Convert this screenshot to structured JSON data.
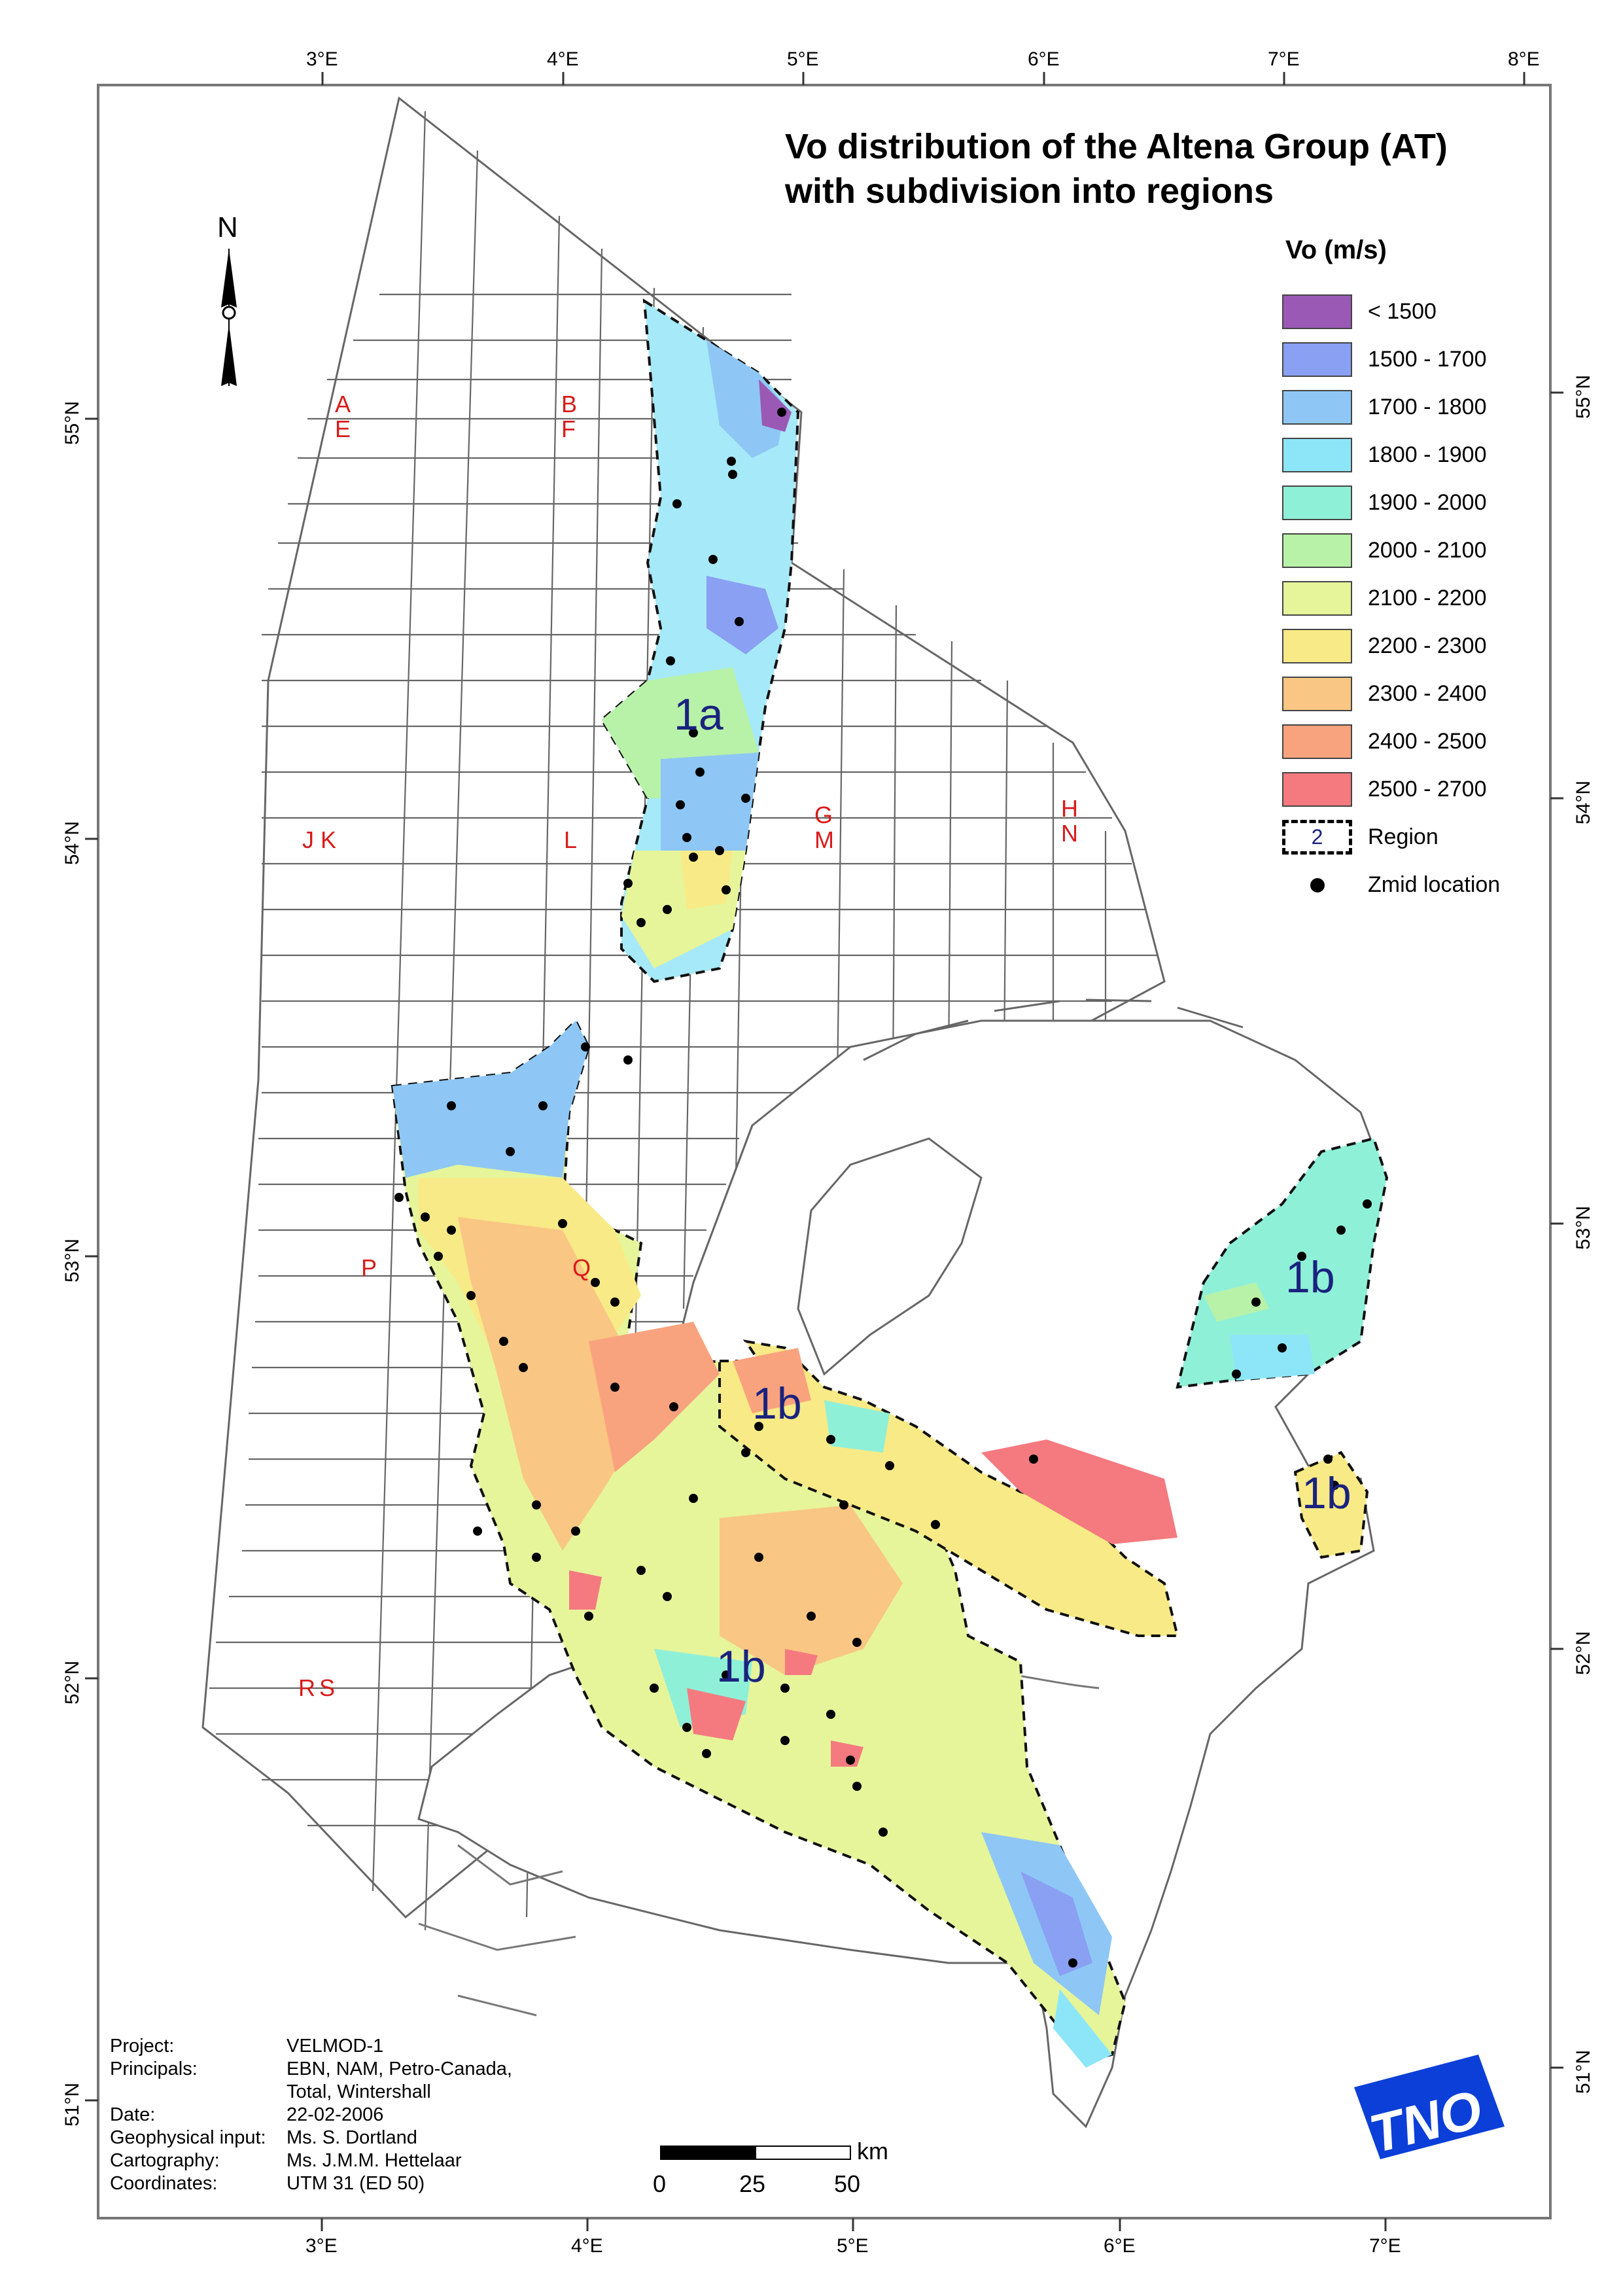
{
  "title_lines": [
    "Vo distribution of the Altena Group (AT)",
    "with subdivision into regions"
  ],
  "legend": {
    "title": "Vo (m/s)",
    "classes": [
      {
        "label": "< 1500",
        "color": "#9b59b6"
      },
      {
        "label": "1500 - 1700",
        "color": "#8aa0f2"
      },
      {
        "label": "1700 - 1800",
        "color": "#8ec7f5"
      },
      {
        "label": "1800 - 1900",
        "color": "#8de6f7"
      },
      {
        "label": "1900 - 2000",
        "color": "#8ff0d8"
      },
      {
        "label": "2000 - 2100",
        "color": "#b7f2a8"
      },
      {
        "label": "2100 - 2200",
        "color": "#e6f59a"
      },
      {
        "label": "2200 - 2300",
        "color": "#f8ea86"
      },
      {
        "label": "2300 - 2400",
        "color": "#f9c684"
      },
      {
        "label": "2400 - 2500",
        "color": "#f9a37e"
      },
      {
        "label": "2500 - 2700",
        "color": "#f47a80"
      }
    ],
    "region_label": "Region",
    "region_symbol_text": "2",
    "zmid_label": "Zmid location"
  },
  "north_arrow": "N",
  "lon_ticks": [
    "3°E",
    "4°E",
    "5°E",
    "6°E",
    "7°E",
    "8°E"
  ],
  "lat_ticks": [
    "55°N",
    "54°N",
    "53°N",
    "52°N",
    "51°N"
  ],
  "block_labels": [
    "A",
    "E",
    "B",
    "F",
    "G",
    "M",
    "H",
    "N",
    "J",
    "K",
    "L",
    "P",
    "Q",
    "R",
    "S"
  ],
  "region_labels": [
    "1a",
    "1b",
    "1b",
    "1b",
    "1b"
  ],
  "scale_bar": {
    "unit": "km",
    "ticks": [
      "0",
      "25",
      "50"
    ]
  },
  "metadata": [
    {
      "key": "Project:",
      "value": "VELMOD-1"
    },
    {
      "key": "Principals:",
      "value": "EBN, NAM, Petro-Canada,"
    },
    {
      "key": "",
      "value": "Total, Wintershall"
    },
    {
      "key": "Date:",
      "value": "22-02-2006"
    },
    {
      "key": "Geophysical input:",
      "value": "Ms. S. Dortland"
    },
    {
      "key": "Cartography:",
      "value": "Ms. J.M.M. Hettelaar"
    },
    {
      "key": "Coordinates:",
      "value": "UTM 31 (ED 50)"
    }
  ],
  "logo_text": "TNO",
  "colors": {
    "frame": "#777777",
    "grid": "#555555",
    "coast": "#666666",
    "region_border": "#111111",
    "label_red": "#d81b1b",
    "region_text": "#1a237e",
    "logo_blue": "#0b3fd8"
  }
}
